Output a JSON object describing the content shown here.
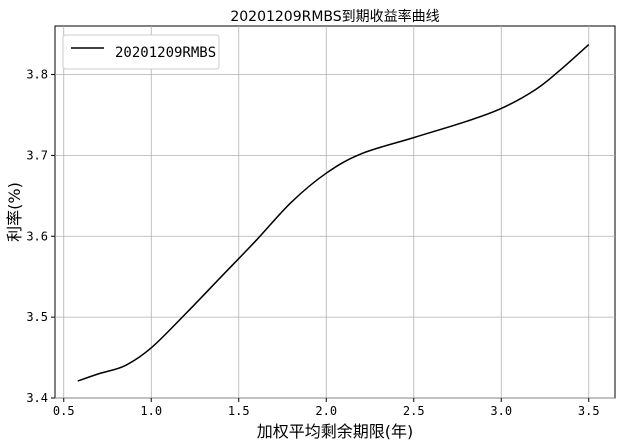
{
  "chart_data": {
    "type": "line",
    "title": "20201209RMBS到期收益率曲线",
    "xlabel": "加权平均剩余期限(年)",
    "ylabel": "利率(%)",
    "xlim": [
      0.45,
      3.65
    ],
    "ylim": [
      3.4,
      3.86
    ],
    "xticks": [
      "0.5",
      "1.0",
      "1.5",
      "2.0",
      "2.5",
      "3.0",
      "3.5"
    ],
    "yticks": [
      "3.4",
      "3.5",
      "3.6",
      "3.7",
      "3.8"
    ],
    "grid": true,
    "legend_position": "top-left",
    "series": [
      {
        "name": "20201209RMBS",
        "color": "#000000",
        "x": [
          0.58,
          0.7,
          0.85,
          1.0,
          1.2,
          1.4,
          1.6,
          1.8,
          2.0,
          2.2,
          2.5,
          2.8,
          3.0,
          3.2,
          3.35,
          3.5
        ],
        "y": [
          3.421,
          3.43,
          3.44,
          3.462,
          3.505,
          3.55,
          3.595,
          3.642,
          3.678,
          3.702,
          3.722,
          3.742,
          3.758,
          3.782,
          3.808,
          3.837
        ]
      }
    ]
  }
}
